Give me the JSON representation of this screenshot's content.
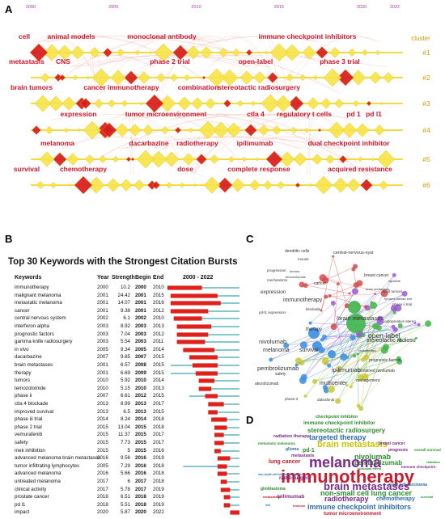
{
  "panel_letters": {
    "a": "A",
    "b": "B",
    "c": "C",
    "d": "D"
  },
  "timeline": {
    "years": [
      "2000",
      "2005",
      "2010",
      "2015",
      "2020",
      "2022"
    ],
    "cluster_header": "cluster",
    "clusters": [
      {
        "id": "#1",
        "labels": [
          "cell",
          "animal models",
          "monoclonal antibody",
          "immune checkpoint inhibitors"
        ]
      },
      {
        "id": "#2",
        "labels": [
          "metastasis",
          "CNS",
          "phase 2 trial",
          "open-label",
          "phase 3 trial"
        ]
      },
      {
        "id": "#3",
        "labels": [
          "brain tumors",
          "cancer immunotherapy",
          "combination",
          "stereotactic radiosurgery"
        ]
      },
      {
        "id": "#4",
        "labels": [
          "expression",
          "tumor microenvironment",
          "ctla 4",
          "regulatory t cells",
          "pd 1",
          "pd l1"
        ]
      },
      {
        "id": "#5",
        "labels": [
          "melanoma",
          "dacarbazine",
          "radiotherapy",
          "ipilimumab",
          "dual checkpoint inhibitor"
        ]
      },
      {
        "id": "#6",
        "labels": [
          "survival",
          "chemotherapy",
          "dose",
          "complete response",
          "acquired resistance"
        ]
      }
    ]
  },
  "bursts": {
    "title": "Top 30 Keywords with the Strongest Citation Bursts",
    "headers": {
      "keywords": "Keywords",
      "year": "Year",
      "strength": "Strength",
      "begin": "Begin",
      "end": "End",
      "range": "2000 - 2022"
    },
    "range_start": 2000,
    "range_end": 2022,
    "rows": [
      {
        "keyword": "immunotherapy",
        "year": "2000",
        "strength": "10.2",
        "begin": "2000",
        "end": "2010"
      },
      {
        "keyword": "malignant melanoma",
        "year": "2001",
        "strength": "24.42",
        "begin": "2001",
        "end": "2015"
      },
      {
        "keyword": "metastatic melanoma",
        "year": "2001",
        "strength": "14.07",
        "begin": "2001",
        "end": "2016"
      },
      {
        "keyword": "cancer",
        "year": "2001",
        "strength": "9.38",
        "begin": "2001",
        "end": "2012"
      },
      {
        "keyword": "central nervous system",
        "year": "2002",
        "strength": "6.1",
        "begin": "2002",
        "end": "2010"
      },
      {
        "keyword": "interferon alpha",
        "year": "2003",
        "strength": "8.92",
        "begin": "2003",
        "end": "2013"
      },
      {
        "keyword": "prognostic factors",
        "year": "2003",
        "strength": "7.04",
        "begin": "2003",
        "end": "2012"
      },
      {
        "keyword": "gamma knife radiosurgery",
        "year": "2003",
        "strength": "5.54",
        "begin": "2003",
        "end": "2011"
      },
      {
        "keyword": "in vivo",
        "year": "2005",
        "strength": "9.34",
        "begin": "2005",
        "end": "2014"
      },
      {
        "keyword": "dacarbazine",
        "year": "2007",
        "strength": "9.85",
        "begin": "2007",
        "end": "2015"
      },
      {
        "keyword": "brain metastases",
        "year": "2001",
        "strength": "6.57",
        "begin": "2008",
        "end": "2015"
      },
      {
        "keyword": "therapy",
        "year": "2001",
        "strength": "6.69",
        "begin": "2009",
        "end": "2015"
      },
      {
        "keyword": "tumors",
        "year": "2010",
        "strength": "5.92",
        "begin": "2010",
        "end": "2014"
      },
      {
        "keyword": "temozolomide",
        "year": "2010",
        "strength": "5.15",
        "begin": "2010",
        "end": "2013"
      },
      {
        "keyword": "phase ii",
        "year": "2007",
        "strength": "6.61",
        "begin": "2012",
        "end": "2015"
      },
      {
        "keyword": "ctla 4 blockade",
        "year": "2013",
        "strength": "8.99",
        "begin": "2013",
        "end": "2017"
      },
      {
        "keyword": "improved survival",
        "year": "2013",
        "strength": "6.5",
        "begin": "2013",
        "end": "2015"
      },
      {
        "keyword": "phase iii trial",
        "year": "2014",
        "strength": "8.24",
        "begin": "2014",
        "end": "2018"
      },
      {
        "keyword": "phase 2 trial",
        "year": "2015",
        "strength": "13.04",
        "begin": "2015",
        "end": "2018"
      },
      {
        "keyword": "vemurafenib",
        "year": "2015",
        "strength": "11.37",
        "begin": "2015",
        "end": "2017"
      },
      {
        "keyword": "safety",
        "year": "2015",
        "strength": "7.73",
        "begin": "2015",
        "end": "2017"
      },
      {
        "keyword": "mek inhibition",
        "year": "2015",
        "strength": "5",
        "begin": "2015",
        "end": "2016"
      },
      {
        "keyword": "advanced melanoma brain metastases",
        "year": "2016",
        "strength": "9.56",
        "begin": "2016",
        "end": "2019"
      },
      {
        "keyword": "tumor infiltrating lymphocytes",
        "year": "2005",
        "strength": "7.29",
        "begin": "2016",
        "end": "2018"
      },
      {
        "keyword": "advanced melanoma",
        "year": "2016",
        "strength": "5.66",
        "begin": "2016",
        "end": "2018"
      },
      {
        "keyword": "untreated melanoma",
        "year": "2017",
        "strength": "6",
        "begin": "2017",
        "end": "2018"
      },
      {
        "keyword": "clinical activity",
        "year": "2017",
        "strength": "5.78",
        "begin": "2017",
        "end": "2019"
      },
      {
        "keyword": "prostate cancer",
        "year": "2018",
        "strength": "6.51",
        "begin": "2018",
        "end": "2019"
      },
      {
        "keyword": "pd l1",
        "year": "2018",
        "strength": "5.51",
        "begin": "2018",
        "end": "2019"
      },
      {
        "keyword": "impact",
        "year": "2020",
        "strength": "5.87",
        "begin": "2020",
        "end": "2022"
      }
    ],
    "colors": {
      "active": "#e0211b",
      "inactive": "#3aa7b0"
    }
  },
  "network": {
    "labels": [
      "central-nervous-syst",
      "dendritic cells",
      "mouse",
      "progression",
      "mechanisms",
      "expression",
      "immunotherapy",
      "pd-l1 expression",
      "nivolumab",
      "melanoma",
      "therapy",
      "survival",
      "pembrolizumab",
      "safety",
      "atezolizumab",
      "multicenter",
      "phase-3",
      "dabrafenib",
      "brain metastases",
      "open-label",
      "stereotactic radiosu",
      "ipilimumab",
      "management",
      "combined nivolumab",
      "prognostic-factors",
      "breast cancer",
      "solid tumors",
      "lapatinib",
      "tyrosine kinase inhi",
      "phase ii trial",
      "postoperative stereo",
      "temozolomide",
      "cancer",
      "tumors",
      "brain metastasis",
      "radiotherapy",
      "blockade"
    ]
  },
  "wordcloud": {
    "words": [
      "checkpoint inhibitor",
      "immune checkpoint inhibitor",
      "stereotactic radiosurgery",
      "radiation therapy",
      "targeted therapy",
      "metastatic melanoma",
      "brain metastasis",
      "breast cancer",
      "glioma",
      "pd-1",
      "prognosis",
      "metastasis",
      "nivolumab",
      "pembrolizumab",
      "lung cancer",
      "melanoma",
      "immunotherapy",
      "radiosurgery",
      "brain metastases",
      "renal cell carcinoma",
      "glioblastoma",
      "non-small cell lung cancer",
      "ipilimumab",
      "radiotherapy",
      "chemotherapy",
      "survival",
      "immune checkpoint inhibitors",
      "tumor microenvironment",
      "immune checkpoint",
      "abscopal effect",
      "non-small cell lung cancer (nsclc)",
      "metastases",
      "overall survival",
      "mri",
      "radiation",
      "immune"
    ]
  }
}
